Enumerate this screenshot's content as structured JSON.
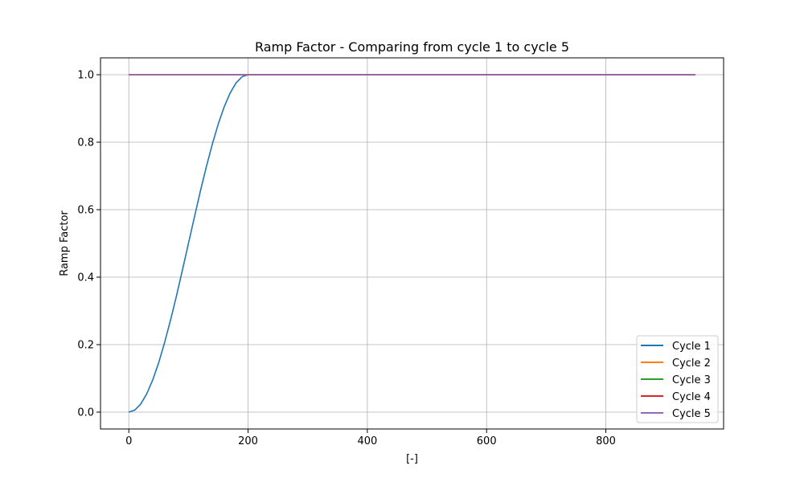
{
  "chart_data": {
    "type": "line",
    "title": "Ramp Factor - Comparing from cycle 1 to cycle 5",
    "xlabel": "[-]",
    "ylabel": "Ramp Factor",
    "xlim": [
      -47.5,
      997.5
    ],
    "ylim": [
      -0.05,
      1.05
    ],
    "xticks": [
      0,
      200,
      400,
      600,
      800
    ],
    "xtick_labels": [
      "0",
      "200",
      "400",
      "600",
      "800"
    ],
    "yticks": [
      0.0,
      0.2,
      0.4,
      0.6,
      0.8,
      1.0
    ],
    "ytick_labels": [
      "0.0",
      "0.2",
      "0.4",
      "0.6",
      "0.8",
      "1.0"
    ],
    "grid": true,
    "legend_position": "lower-right",
    "series": [
      {
        "name": "Cycle 1",
        "color": "#1f77b4",
        "x": [
          0,
          10,
          20,
          30,
          40,
          50,
          60,
          70,
          80,
          90,
          100,
          110,
          120,
          130,
          140,
          150,
          160,
          170,
          180,
          190,
          200,
          950
        ],
        "y": [
          0.0,
          0.006,
          0.024,
          0.054,
          0.095,
          0.146,
          0.206,
          0.273,
          0.345,
          0.422,
          0.5,
          0.578,
          0.655,
          0.727,
          0.794,
          0.854,
          0.905,
          0.946,
          0.976,
          0.994,
          1.0,
          1.0
        ]
      },
      {
        "name": "Cycle 2",
        "color": "#ff7f0e",
        "x": [
          0,
          950
        ],
        "y": [
          1.0,
          1.0
        ]
      },
      {
        "name": "Cycle 3",
        "color": "#2ca02c",
        "x": [
          0,
          950
        ],
        "y": [
          1.0,
          1.0
        ]
      },
      {
        "name": "Cycle 4",
        "color": "#d62728",
        "x": [
          0,
          950
        ],
        "y": [
          1.0,
          1.0
        ]
      },
      {
        "name": "Cycle 5",
        "color": "#9467bd",
        "x": [
          0,
          950
        ],
        "y": [
          1.0,
          1.0
        ]
      }
    ]
  }
}
